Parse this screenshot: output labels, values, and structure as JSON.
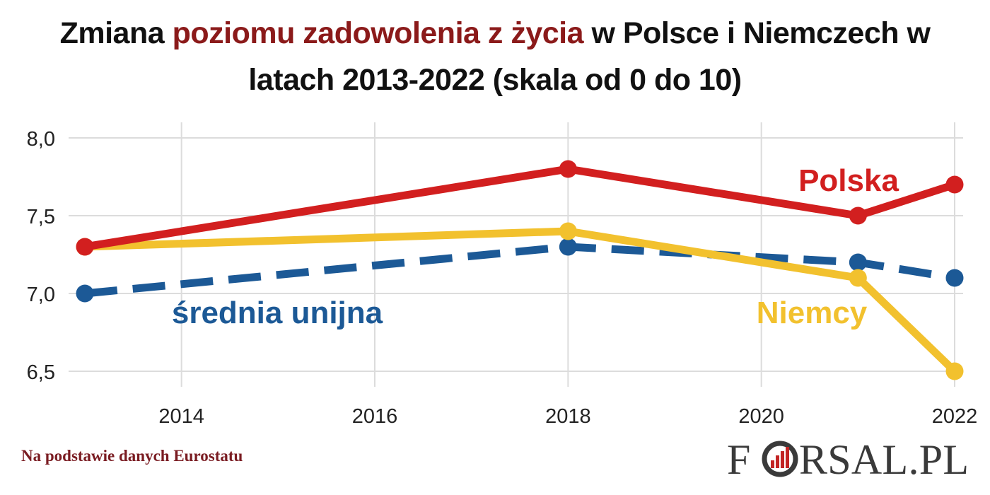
{
  "title": {
    "part1": "Zmiana ",
    "highlight": "poziomu zadowolenia z życia",
    "part2": " w Polsce i Niemczech w",
    "line2": "latach 2013-2022 (skala od 0 do 10)"
  },
  "source": "Na podstawie danych Eurostatu",
  "logo": {
    "left": "F",
    "right": "RSAL.PL"
  },
  "colors": {
    "polska": "#d21f1f",
    "niemcy": "#f2c12e",
    "ue": "#1c5996",
    "grid": "#dcdcdc",
    "title_highlight": "#8b1a1a",
    "source": "#7a1c22"
  },
  "chart_data": {
    "type": "line",
    "x_ticks": [
      2014,
      2016,
      2018,
      2020,
      2022
    ],
    "x_tick_labels": [
      "2014",
      "2016",
      "2018",
      "2020",
      "2022"
    ],
    "y_ticks": [
      6.5,
      7.0,
      7.5,
      8.0
    ],
    "y_tick_labels": [
      "6,5",
      "7,0",
      "7,5",
      "8,0"
    ],
    "xlim": [
      2013,
      2022
    ],
    "ylim": [
      6.4,
      8.1
    ],
    "grid": true,
    "series": [
      {
        "key": "ue",
        "name": "średnia unijna",
        "style": "dashed",
        "points": [
          [
            2013,
            7.0
          ],
          [
            2018,
            7.3
          ],
          [
            2021,
            7.2
          ],
          [
            2022,
            7.1
          ]
        ]
      },
      {
        "key": "niemcy",
        "name": "Niemcy",
        "style": "solid",
        "points": [
          [
            2013,
            7.3
          ],
          [
            2018,
            7.4
          ],
          [
            2021,
            7.1
          ],
          [
            2022,
            6.5
          ]
        ]
      },
      {
        "key": "polska",
        "name": "Polska",
        "style": "solid",
        "points": [
          [
            2013,
            7.3
          ],
          [
            2018,
            7.8
          ],
          [
            2021,
            7.5
          ],
          [
            2022,
            7.7
          ]
        ]
      }
    ]
  }
}
